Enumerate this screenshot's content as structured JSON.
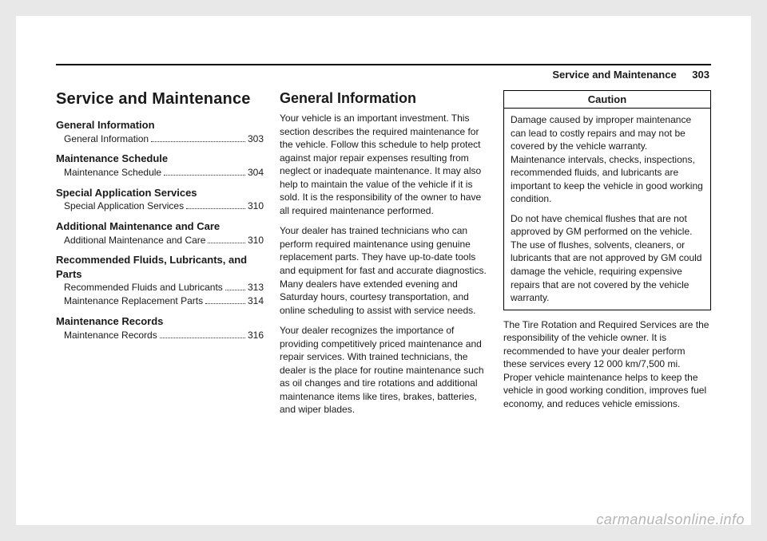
{
  "header": {
    "section": "Service and Maintenance",
    "page": "303"
  },
  "col1": {
    "h1": "Service and Maintenance",
    "toc": [
      {
        "title": "General Information",
        "items": [
          {
            "label": "General Information",
            "page": "303"
          }
        ]
      },
      {
        "title": "Maintenance Schedule",
        "items": [
          {
            "label": "Maintenance Schedule",
            "page": "304"
          }
        ]
      },
      {
        "title": "Special Application Services",
        "items": [
          {
            "label": "Special Application Services",
            "page": "310"
          }
        ]
      },
      {
        "title": "Additional Maintenance and Care",
        "items": [
          {
            "label": "Additional Maintenance and Care",
            "page": "310"
          }
        ]
      },
      {
        "title": "Recommended Fluids, Lubricants, and Parts",
        "items": [
          {
            "label": "Recommended Fluids and Lubricants",
            "page": "313"
          },
          {
            "label": "Maintenance Replacement Parts",
            "page": "314"
          }
        ]
      },
      {
        "title": "Maintenance Records",
        "items": [
          {
            "label": "Maintenance Records",
            "page": "316"
          }
        ]
      }
    ]
  },
  "col2": {
    "h2": "General Information",
    "paras": [
      "Your vehicle is an important investment. This section describes the required maintenance for the vehicle. Follow this schedule to help protect against major repair expenses resulting from neglect or inadequate maintenance. It may also help to maintain the value of the vehicle if it is sold. It is the responsibility of the owner to have all required maintenance performed.",
      "Your dealer has trained technicians who can perform required maintenance using genuine replacement parts. They have up-to-date tools and equipment for fast and accurate diagnostics. Many dealers have extended evening and Saturday hours, courtesy transportation, and online scheduling to assist with service needs.",
      "Your dealer recognizes the importance of providing competitively priced maintenance and repair services. With trained technicians, the dealer is the place for routine maintenance such as oil changes and tire rotations and additional maintenance items like tires, brakes, batteries, and wiper blades."
    ]
  },
  "col3": {
    "caution_label": "Caution",
    "caution_paras": [
      "Damage caused by improper maintenance can lead to costly repairs and may not be covered by the vehicle warranty. Maintenance intervals, checks, inspections, recommended fluids, and lubricants are important to keep the vehicle in good working condition.",
      "Do not have chemical flushes that are not approved by GM performed on the vehicle. The use of flushes, solvents, cleaners, or lubricants that are not approved by GM could damage the vehicle, requiring expensive repairs that are not covered by the vehicle warranty."
    ],
    "after": "The Tire Rotation and Required Services are the responsibility of the vehicle owner. It is recommended to have your dealer perform these services every 12 000 km/7,500 mi. Proper vehicle maintenance helps to keep the vehicle in good working condition, improves fuel economy, and reduces vehicle emissions."
  },
  "watermark": "carmanualsonline.info"
}
